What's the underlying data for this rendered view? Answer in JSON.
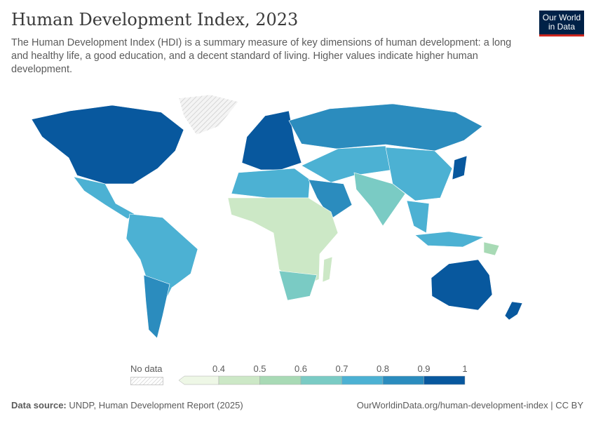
{
  "header": {
    "title": "Human Development Index, 2023",
    "subtitle": "The Human Development Index (HDI) is a summary measure of key dimensions of human development: a long and healthy life, a good education, and a decent standard of living. Higher values indicate higher human development.",
    "logo_text": "Our World in Data"
  },
  "chart_data": {
    "type": "choropleth",
    "year": "2023",
    "legend": {
      "no_data_label": "No data",
      "ticks": [
        "0.4",
        "0.5",
        "0.6",
        "0.7",
        "0.8",
        "0.9",
        "1"
      ],
      "bins": [
        {
          "range": "<0.4",
          "color": "#eef7e6"
        },
        {
          "range": "0.4-0.5",
          "color": "#cce8c6"
        },
        {
          "range": "0.5-0.6",
          "color": "#a8dab5"
        },
        {
          "range": "0.6-0.7",
          "color": "#7acbc4"
        },
        {
          "range": "0.7-0.8",
          "color": "#4cb1d3"
        },
        {
          "range": "0.8-0.9",
          "color": "#2b8cbe"
        },
        {
          "range": "0.9-1",
          "color": "#08589e"
        }
      ],
      "no_data_color": "#e0e0e0"
    },
    "regions": [
      {
        "name": "North America (USA, Canada)",
        "bin": "0.9-1"
      },
      {
        "name": "Greenland",
        "bin": "No data"
      },
      {
        "name": "Mexico & Central America",
        "bin": "0.7-0.8"
      },
      {
        "name": "South America",
        "bin": "0.7-0.8"
      },
      {
        "name": "Argentina & Chile",
        "bin": "0.8-0.9"
      },
      {
        "name": "Western & Northern Europe",
        "bin": "0.9-1"
      },
      {
        "name": "Russia & Eastern Europe",
        "bin": "0.8-0.9"
      },
      {
        "name": "Central Asia & Middle East",
        "bin": "0.7-0.8"
      },
      {
        "name": "China",
        "bin": "0.7-0.8"
      },
      {
        "name": "Japan & South Korea",
        "bin": "0.9-1"
      },
      {
        "name": "India & South Asia",
        "bin": "0.6-0.7"
      },
      {
        "name": "Southeast Asia",
        "bin": "0.7-0.8"
      },
      {
        "name": "North Africa",
        "bin": "0.7-0.8"
      },
      {
        "name": "Arabian Peninsula",
        "bin": "0.8-0.9"
      },
      {
        "name": "Sub-Saharan Africa",
        "bin": "0.4-0.5"
      },
      {
        "name": "Southern Africa",
        "bin": "0.6-0.7"
      },
      {
        "name": "Madagascar",
        "bin": "0.4-0.5"
      },
      {
        "name": "Indonesia",
        "bin": "0.7-0.8"
      },
      {
        "name": "Papua New Guinea",
        "bin": "0.5-0.6"
      },
      {
        "name": "Australia",
        "bin": "0.9-1"
      },
      {
        "name": "New Zealand",
        "bin": "0.9-1"
      }
    ]
  },
  "footer": {
    "source_label": "Data source:",
    "source": "UNDP, Human Development Report (2025)",
    "link": "OurWorldinData.org/human-development-index | CC BY"
  }
}
